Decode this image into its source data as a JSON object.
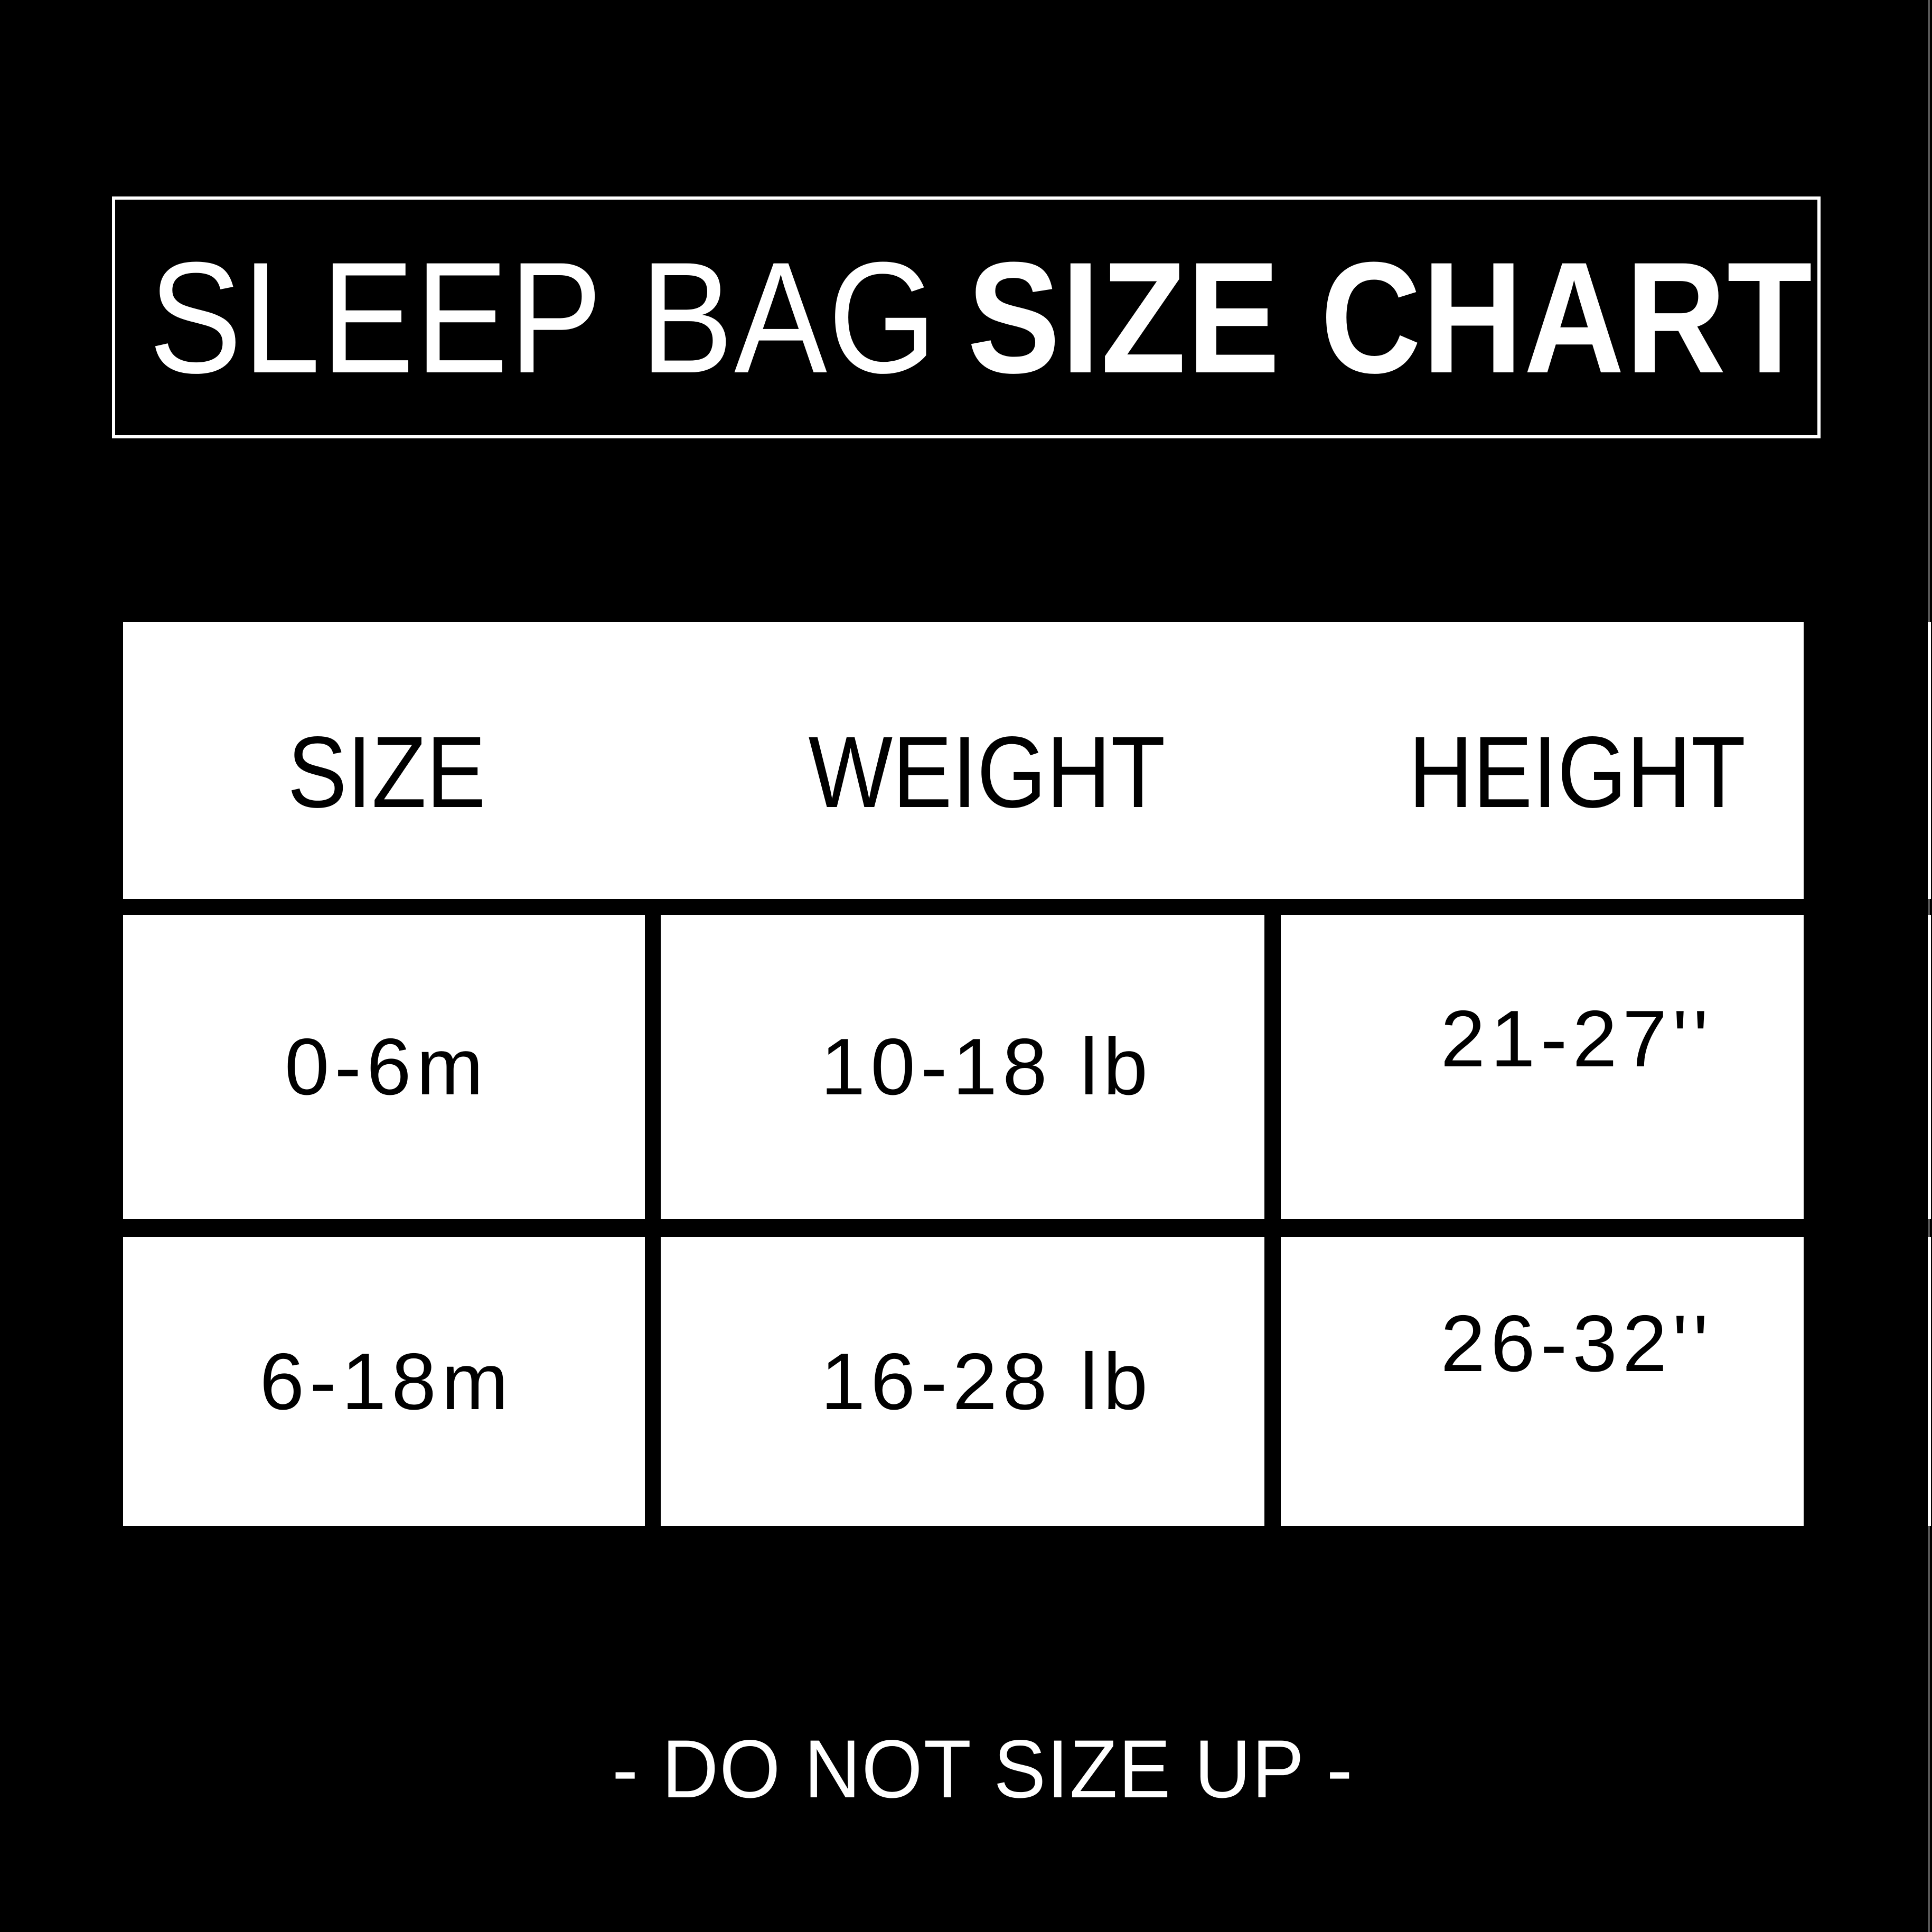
{
  "title": {
    "regular": "SLEEP BAG",
    "bold": "SIZE CHART"
  },
  "table": {
    "headers": [
      "SIZE",
      "WEIGHT",
      "HEIGHT"
    ],
    "rows": [
      {
        "size": "0-6m",
        "weight": "10-18 lb",
        "height": "21-27''"
      },
      {
        "size": "6-18m",
        "weight": "16-28 lb",
        "height": "26-32''"
      }
    ]
  },
  "footer": {
    "note": "- DO NOT SIZE UP -"
  },
  "colors": {
    "background": "#000000",
    "panel": "#ffffff",
    "text_on_panel": "#000000",
    "text_on_background": "#ffffff"
  },
  "chart_data": {
    "type": "table",
    "title": "SLEEP BAG SIZE CHART",
    "columns": [
      "SIZE",
      "WEIGHT",
      "HEIGHT"
    ],
    "rows": [
      [
        "0-6m",
        "10-18 lb",
        "21-27''"
      ],
      [
        "6-18m",
        "16-28 lb",
        "26-32''"
      ]
    ],
    "footnote": "- DO NOT SIZE UP -"
  }
}
